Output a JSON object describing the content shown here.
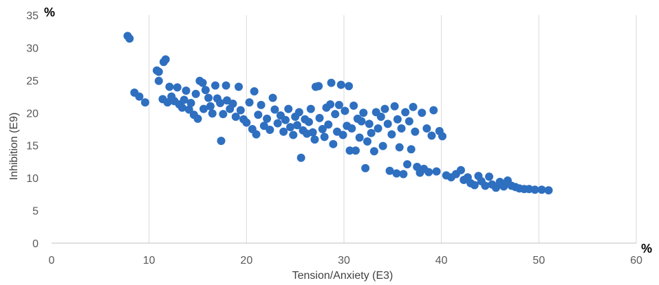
{
  "chart_data": {
    "type": "scatter",
    "xlabel": "Tension/Anxiety (E3)",
    "ylabel": "Inhibition (E9)",
    "x_unit": "%",
    "y_unit": "%",
    "xlim": [
      0,
      60
    ],
    "ylim": [
      0,
      35
    ],
    "x_ticks": [
      0,
      10,
      20,
      30,
      40,
      50,
      60
    ],
    "y_ticks": [
      0,
      5,
      10,
      15,
      20,
      25,
      30,
      35
    ],
    "grid": "vertical",
    "marker_color": "#2E6FC0",
    "gridline_color": "#D9D9D9",
    "axis_color": "#BFBFBF",
    "points": [
      [
        7.8,
        31.8
      ],
      [
        8.0,
        31.4
      ],
      [
        8.5,
        23.1
      ],
      [
        9.0,
        22.5
      ],
      [
        9.6,
        21.6
      ],
      [
        10.8,
        26.5
      ],
      [
        11.0,
        26.3
      ],
      [
        11.0,
        24.9
      ],
      [
        11.5,
        27.8
      ],
      [
        11.7,
        28.2
      ],
      [
        11.4,
        22.1
      ],
      [
        11.9,
        21.6
      ],
      [
        12.1,
        24.0
      ],
      [
        12.3,
        22.5
      ],
      [
        12.6,
        21.8
      ],
      [
        12.9,
        23.9
      ],
      [
        13.1,
        21.3
      ],
      [
        13.4,
        20.8
      ],
      [
        13.6,
        22.0
      ],
      [
        13.8,
        23.4
      ],
      [
        14.1,
        20.5
      ],
      [
        14.3,
        21.5
      ],
      [
        14.6,
        19.7
      ],
      [
        14.8,
        22.9
      ],
      [
        15.0,
        19.1
      ],
      [
        15.2,
        24.9
      ],
      [
        15.5,
        24.6
      ],
      [
        15.6,
        20.6
      ],
      [
        15.8,
        23.5
      ],
      [
        16.1,
        22.3
      ],
      [
        16.3,
        21.0
      ],
      [
        16.5,
        19.9
      ],
      [
        16.8,
        24.2
      ],
      [
        17.0,
        22.2
      ],
      [
        17.3,
        21.5
      ],
      [
        17.4,
        15.7
      ],
      [
        17.6,
        19.8
      ],
      [
        17.9,
        24.2
      ],
      [
        18.0,
        21.9
      ],
      [
        18.3,
        20.6
      ],
      [
        18.6,
        21.4
      ],
      [
        18.9,
        19.4
      ],
      [
        19.2,
        24.0
      ],
      [
        19.4,
        20.4
      ],
      [
        19.7,
        19.0
      ],
      [
        20.0,
        18.5
      ],
      [
        20.3,
        21.6
      ],
      [
        20.6,
        17.5
      ],
      [
        20.8,
        23.3
      ],
      [
        21.0,
        16.7
      ],
      [
        21.2,
        19.7
      ],
      [
        21.5,
        21.2
      ],
      [
        21.8,
        18.0
      ],
      [
        22.1,
        19.1
      ],
      [
        22.4,
        17.4
      ],
      [
        22.7,
        22.3
      ],
      [
        22.9,
        20.5
      ],
      [
        23.2,
        18.4
      ],
      [
        23.5,
        19.6
      ],
      [
        23.8,
        17.1
      ],
      [
        24.0,
        18.9
      ],
      [
        24.3,
        20.6
      ],
      [
        24.5,
        17.8
      ],
      [
        24.8,
        16.6
      ],
      [
        25.0,
        19.4
      ],
      [
        25.2,
        18.1
      ],
      [
        25.4,
        20.1
      ],
      [
        25.6,
        13.1
      ],
      [
        25.8,
        17.3
      ],
      [
        26.0,
        19.0
      ],
      [
        26.2,
        16.8
      ],
      [
        26.4,
        18.6
      ],
      [
        26.6,
        20.6
      ],
      [
        26.8,
        17.0
      ],
      [
        27.0,
        15.9
      ],
      [
        27.1,
        24.0
      ],
      [
        27.4,
        24.1
      ],
      [
        27.5,
        19.2
      ],
      [
        27.8,
        17.5
      ],
      [
        28.0,
        16.3
      ],
      [
        28.2,
        20.8
      ],
      [
        28.4,
        18.2
      ],
      [
        28.6,
        21.3
      ],
      [
        28.7,
        24.6
      ],
      [
        28.9,
        15.2
      ],
      [
        29.1,
        19.8
      ],
      [
        29.3,
        17.1
      ],
      [
        29.5,
        21.2
      ],
      [
        29.7,
        24.3
      ],
      [
        29.9,
        16.6
      ],
      [
        30.1,
        20.3
      ],
      [
        30.3,
        18.0
      ],
      [
        30.5,
        24.1
      ],
      [
        30.6,
        14.2
      ],
      [
        30.8,
        17.6
      ],
      [
        31.0,
        21.1
      ],
      [
        31.2,
        14.2
      ],
      [
        31.4,
        19.1
      ],
      [
        31.6,
        16.2
      ],
      [
        31.8,
        18.7
      ],
      [
        32.0,
        20.0
      ],
      [
        32.2,
        11.5
      ],
      [
        32.4,
        15.6
      ],
      [
        32.6,
        18.3
      ],
      [
        32.8,
        16.9
      ],
      [
        33.1,
        14.1
      ],
      [
        33.3,
        20.1
      ],
      [
        33.5,
        17.6
      ],
      [
        33.8,
        19.4
      ],
      [
        34.0,
        14.9
      ],
      [
        34.2,
        20.6
      ],
      [
        34.5,
        18.3
      ],
      [
        34.7,
        11.1
      ],
      [
        34.9,
        16.7
      ],
      [
        35.2,
        21.0
      ],
      [
        35.4,
        10.7
      ],
      [
        35.5,
        19.0
      ],
      [
        35.7,
        14.7
      ],
      [
        35.9,
        17.6
      ],
      [
        36.1,
        10.6
      ],
      [
        36.3,
        20.1
      ],
      [
        36.5,
        12.1
      ],
      [
        36.7,
        18.7
      ],
      [
        36.9,
        14.4
      ],
      [
        37.1,
        20.9
      ],
      [
        37.3,
        17.1
      ],
      [
        37.5,
        11.7
      ],
      [
        37.8,
        10.8
      ],
      [
        38.0,
        20.0
      ],
      [
        38.2,
        11.4
      ],
      [
        38.5,
        17.6
      ],
      [
        38.7,
        10.9
      ],
      [
        39.0,
        16.5
      ],
      [
        39.2,
        20.4
      ],
      [
        39.5,
        11.0
      ],
      [
        39.8,
        17.2
      ],
      [
        40.1,
        16.4
      ],
      [
        40.5,
        10.4
      ],
      [
        41.0,
        10.1
      ],
      [
        41.5,
        10.6
      ],
      [
        42.0,
        11.2
      ],
      [
        42.3,
        9.7
      ],
      [
        42.7,
        10.1
      ],
      [
        43.0,
        9.2
      ],
      [
        43.4,
        8.9
      ],
      [
        43.8,
        10.3
      ],
      [
        44.1,
        9.5
      ],
      [
        44.5,
        8.8
      ],
      [
        44.9,
        10.2
      ],
      [
        45.2,
        9.0
      ],
      [
        45.6,
        8.5
      ],
      [
        46.0,
        9.4
      ],
      [
        46.4,
        8.7
      ],
      [
        46.8,
        9.6
      ],
      [
        47.2,
        8.8
      ],
      [
        47.6,
        8.6
      ],
      [
        48.0,
        8.4
      ],
      [
        48.5,
        8.3
      ],
      [
        49.0,
        8.3
      ],
      [
        49.6,
        8.2
      ],
      [
        50.3,
        8.2
      ],
      [
        51.0,
        8.1
      ]
    ]
  }
}
